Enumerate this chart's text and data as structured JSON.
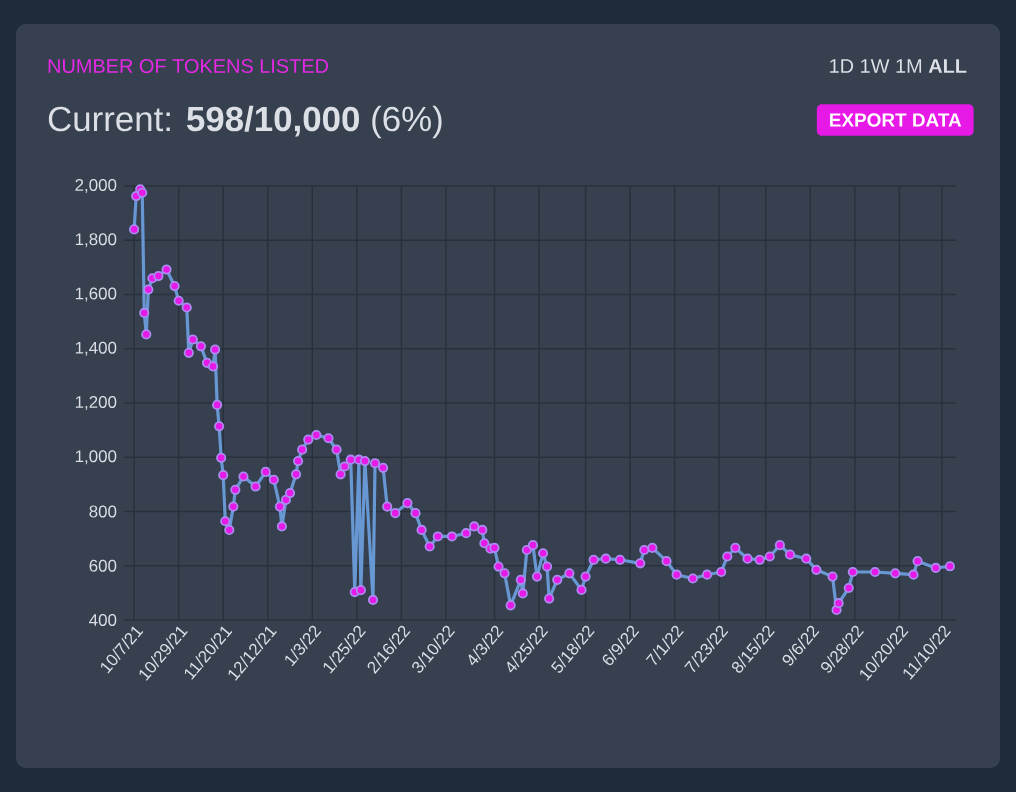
{
  "chart_data": {
    "type": "line",
    "title": "NUMBER OF TOKENS LISTED",
    "subtitle": "Current: **598/10,000** (6%)",
    "annotations": [
      "1D 1W 1M **ALL**",
      "EXPORT DATA"
    ],
    "x": [
      "2021-10-07",
      "2021-10-08",
      "2021-10-10",
      "2021-10-11",
      "2021-10-12",
      "2021-10-13",
      "2021-10-14",
      "2021-10-16",
      "2021-10-19",
      "2021-10-23",
      "2021-10-27",
      "2021-10-29",
      "2021-11-02",
      "2021-11-03",
      "2021-11-05",
      "2021-11-09",
      "2021-11-12",
      "2021-11-15",
      "2021-11-16",
      "2021-11-17",
      "2021-11-18",
      "2021-11-19",
      "2021-11-20",
      "2021-11-21",
      "2021-11-23",
      "2021-11-25",
      "2021-11-26",
      "2021-11-30",
      "2021-12-06",
      "2021-12-11",
      "2021-12-15",
      "2021-12-18",
      "2021-12-19",
      "2021-12-21",
      "2021-12-23",
      "2021-12-26",
      "2021-12-27",
      "2021-12-29",
      "2022-01-01",
      "2022-01-05",
      "2022-01-11",
      "2022-01-15",
      "2022-01-17",
      "2022-01-19",
      "2022-01-22",
      "2022-01-24",
      "2022-01-26",
      "2022-01-27",
      "2022-01-29",
      "2022-02-02",
      "2022-02-03",
      "2022-02-07",
      "2022-02-09",
      "2022-02-13",
      "2022-02-19",
      "2022-02-23",
      "2022-02-26",
      "2022-03-02",
      "2022-03-06",
      "2022-03-13",
      "2022-03-20",
      "2022-03-24",
      "2022-03-28",
      "2022-03-29",
      "2022-04-01",
      "2022-04-03",
      "2022-04-05",
      "2022-04-08",
      "2022-04-11",
      "2022-04-16",
      "2022-04-17",
      "2022-04-19",
      "2022-04-22",
      "2022-04-24",
      "2022-04-27",
      "2022-04-29",
      "2022-04-30",
      "2022-05-04",
      "2022-05-10",
      "2022-05-16",
      "2022-05-18",
      "2022-05-22",
      "2022-05-28",
      "2022-06-04",
      "2022-06-14",
      "2022-06-16",
      "2022-06-20",
      "2022-06-27",
      "2022-07-02",
      "2022-07-10",
      "2022-07-17",
      "2022-07-24",
      "2022-07-27",
      "2022-07-31",
      "2022-08-06",
      "2022-08-12",
      "2022-08-17",
      "2022-08-22",
      "2022-08-27",
      "2022-09-04",
      "2022-09-09",
      "2022-09-17",
      "2022-09-19",
      "2022-09-20",
      "2022-09-25",
      "2022-09-27",
      "2022-10-08",
      "2022-10-18",
      "2022-10-27",
      "2022-10-29",
      "2022-11-07",
      "2022-11-14"
    ],
    "series": [
      {
        "color": "#e619e6",
        "values": [
          1840,
          1963,
          1988,
          1975,
          1532,
          1453,
          1618,
          1660,
          1668,
          1692,
          1631,
          1577,
          1552,
          1385,
          1434,
          1409,
          1348,
          1335,
          1397,
          1193,
          1114,
          998,
          934,
          764,
          732,
          818,
          880,
          929,
          892,
          946,
          917,
          818,
          745,
          843,
          868,
          937,
          986,
          1028,
          1065,
          1082,
          1070,
          1028,
          937,
          966,
          991,
          503,
          991,
          510,
          986,
          474,
          978,
          961,
          818,
          794,
          831,
          794,
          732,
          671,
          708,
          708,
          720,
          745,
          732,
          683,
          663,
          666,
          597,
          572,
          454,
          548,
          498,
          658,
          676,
          560,
          646,
          597,
          479,
          548,
          572,
          511,
          560,
          622,
          626,
          622,
          609,
          658,
          666,
          617,
          567,
          553,
          567,
          577,
          634,
          666,
          626,
          622,
          634,
          676,
          641,
          626,
          585,
          560,
          437,
          462,
          518,
          577,
          577,
          572,
          567,
          617,
          592,
          598
        ]
      }
    ],
    "xlim": [
      "2021-10-02",
      "2022-11-17"
    ],
    "xticks": [
      {
        "value": "2021-10-07",
        "label": "10/7/21"
      },
      {
        "value": "2021-10-29",
        "label": "10/29/21"
      },
      {
        "value": "2021-11-20",
        "label": "11/20/21"
      },
      {
        "value": "2021-12-12",
        "label": "12/12/21"
      },
      {
        "value": "2022-01-03",
        "label": "1/3/22"
      },
      {
        "value": "2022-01-25",
        "label": "1/25/22"
      },
      {
        "value": "2022-02-16",
        "label": "2/16/22"
      },
      {
        "value": "2022-03-10",
        "label": "3/10/22"
      },
      {
        "value": "2022-04-03",
        "label": "4/3/22"
      },
      {
        "value": "2022-04-25",
        "label": "4/25/22"
      },
      {
        "value": "2022-05-18",
        "label": "5/18/22"
      },
      {
        "value": "2022-06-09",
        "label": "6/9/22"
      },
      {
        "value": "2022-07-01",
        "label": "7/1/22"
      },
      {
        "value": "2022-07-23",
        "label": "7/23/22"
      },
      {
        "value": "2022-08-15",
        "label": "8/15/22"
      },
      {
        "value": "2022-09-06",
        "label": "9/6/22"
      },
      {
        "value": "2022-09-28",
        "label": "9/28/22"
      },
      {
        "value": "2022-10-20",
        "label": "10/20/22"
      },
      {
        "value": "2022-11-10",
        "label": "11/10/22"
      }
    ],
    "ylim": [
      400,
      2000
    ],
    "yticks": [
      400,
      600,
      800,
      {
        "value": 1000,
        "label": "1,000"
      },
      {
        "value": 1200,
        "label": "1,200"
      },
      {
        "value": 1400,
        "label": "1,400"
      },
      {
        "value": 1600,
        "label": "1,600"
      },
      {
        "value": 1800,
        "label": "1,800"
      },
      {
        "value": 2000,
        "label": "2,000"
      }
    ],
    "grid": true,
    "marker": "circle",
    "line_style": "solid"
  }
}
